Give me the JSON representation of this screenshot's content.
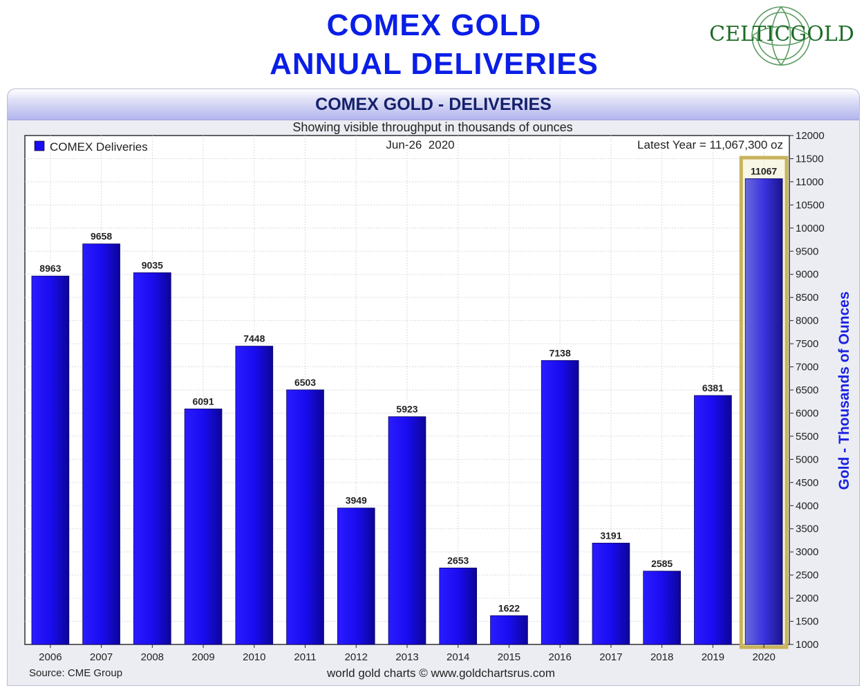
{
  "headline": {
    "line1": "COMEX GOLD",
    "line2": "ANNUAL DELIVERIES"
  },
  "logo": {
    "text": "CELTICGOLD",
    "color": "#1d6a25"
  },
  "panel": {
    "title": "COMEX GOLD - DELIVERIES",
    "subtitle": "Showing visible throughput in thousands of ounces"
  },
  "chart_data": {
    "type": "bar",
    "date_label": "Jun-26  2020",
    "legend": "COMEX Deliveries",
    "latest_note": "Latest Year = 11,067,300 oz",
    "ylabel": "Gold - Thousands of Ounces",
    "source": "Source: CME Group",
    "credit": "world gold charts © www.goldchartsrus.com",
    "categories": [
      "2006",
      "2007",
      "2008",
      "2009",
      "2010",
      "2011",
      "2012",
      "2013",
      "2014",
      "2015",
      "2016",
      "2017",
      "2018",
      "2019",
      "2020"
    ],
    "values": [
      8963,
      9658,
      9035,
      6091,
      7448,
      6503,
      3949,
      5923,
      2653,
      1622,
      7138,
      3191,
      2585,
      6381,
      11067
    ],
    "ylim": [
      1000,
      12000
    ],
    "yticks": [
      1000,
      1500,
      2000,
      2500,
      3000,
      3500,
      4000,
      4500,
      5000,
      5500,
      6000,
      6500,
      7000,
      7500,
      8000,
      8500,
      9000,
      9500,
      10000,
      10500,
      11000,
      11500,
      12000
    ],
    "highlight_category": "2020",
    "bar_color": "#1a0cf0",
    "highlight_color": "#c9b35a",
    "grid": true
  }
}
